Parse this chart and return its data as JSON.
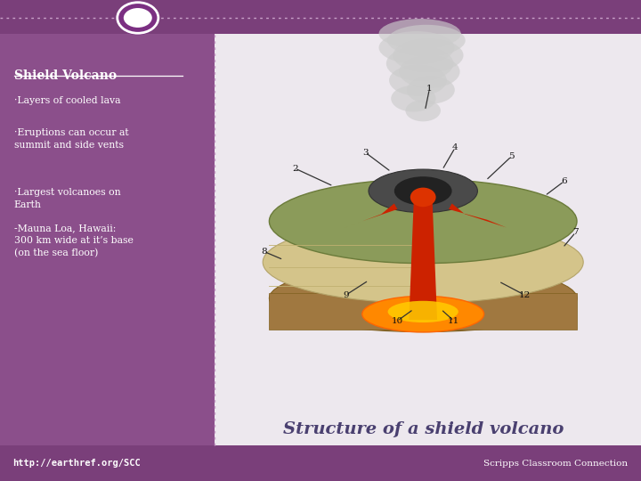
{
  "bg_color": "#8B4F8B",
  "left_panel_color": "#8B4F8B",
  "top_bar_color": "#7A3F7A",
  "bottom_bar_color": "#7A3F7A",
  "right_panel_color": "#EDE8EE",
  "title": "Shield Volcano",
  "bullets": [
    "·Layers of cooled lava",
    "·Eruptions can occur at\nsummit and side vents",
    "·Largest volcanoes on\nEarth",
    "-Mauna Loa, Hawaii:\n300 km wide at it’s base\n(on the sea floor)"
  ],
  "caption": "Structure of a shield volcano",
  "footer_left": "http://earthref.org/SCC",
  "footer_right": "Scripps Classroom Connection",
  "title_color": "#FFFFFF",
  "bullet_color": "#FFFFFF",
  "caption_color": "#4A4070",
  "footer_color": "#FFFFFF",
  "border_color": "#C8A0C8",
  "numbers": [
    "1",
    "2",
    "3",
    "4",
    "5",
    "6",
    "7",
    "8",
    "9",
    "10",
    "11",
    "12"
  ]
}
